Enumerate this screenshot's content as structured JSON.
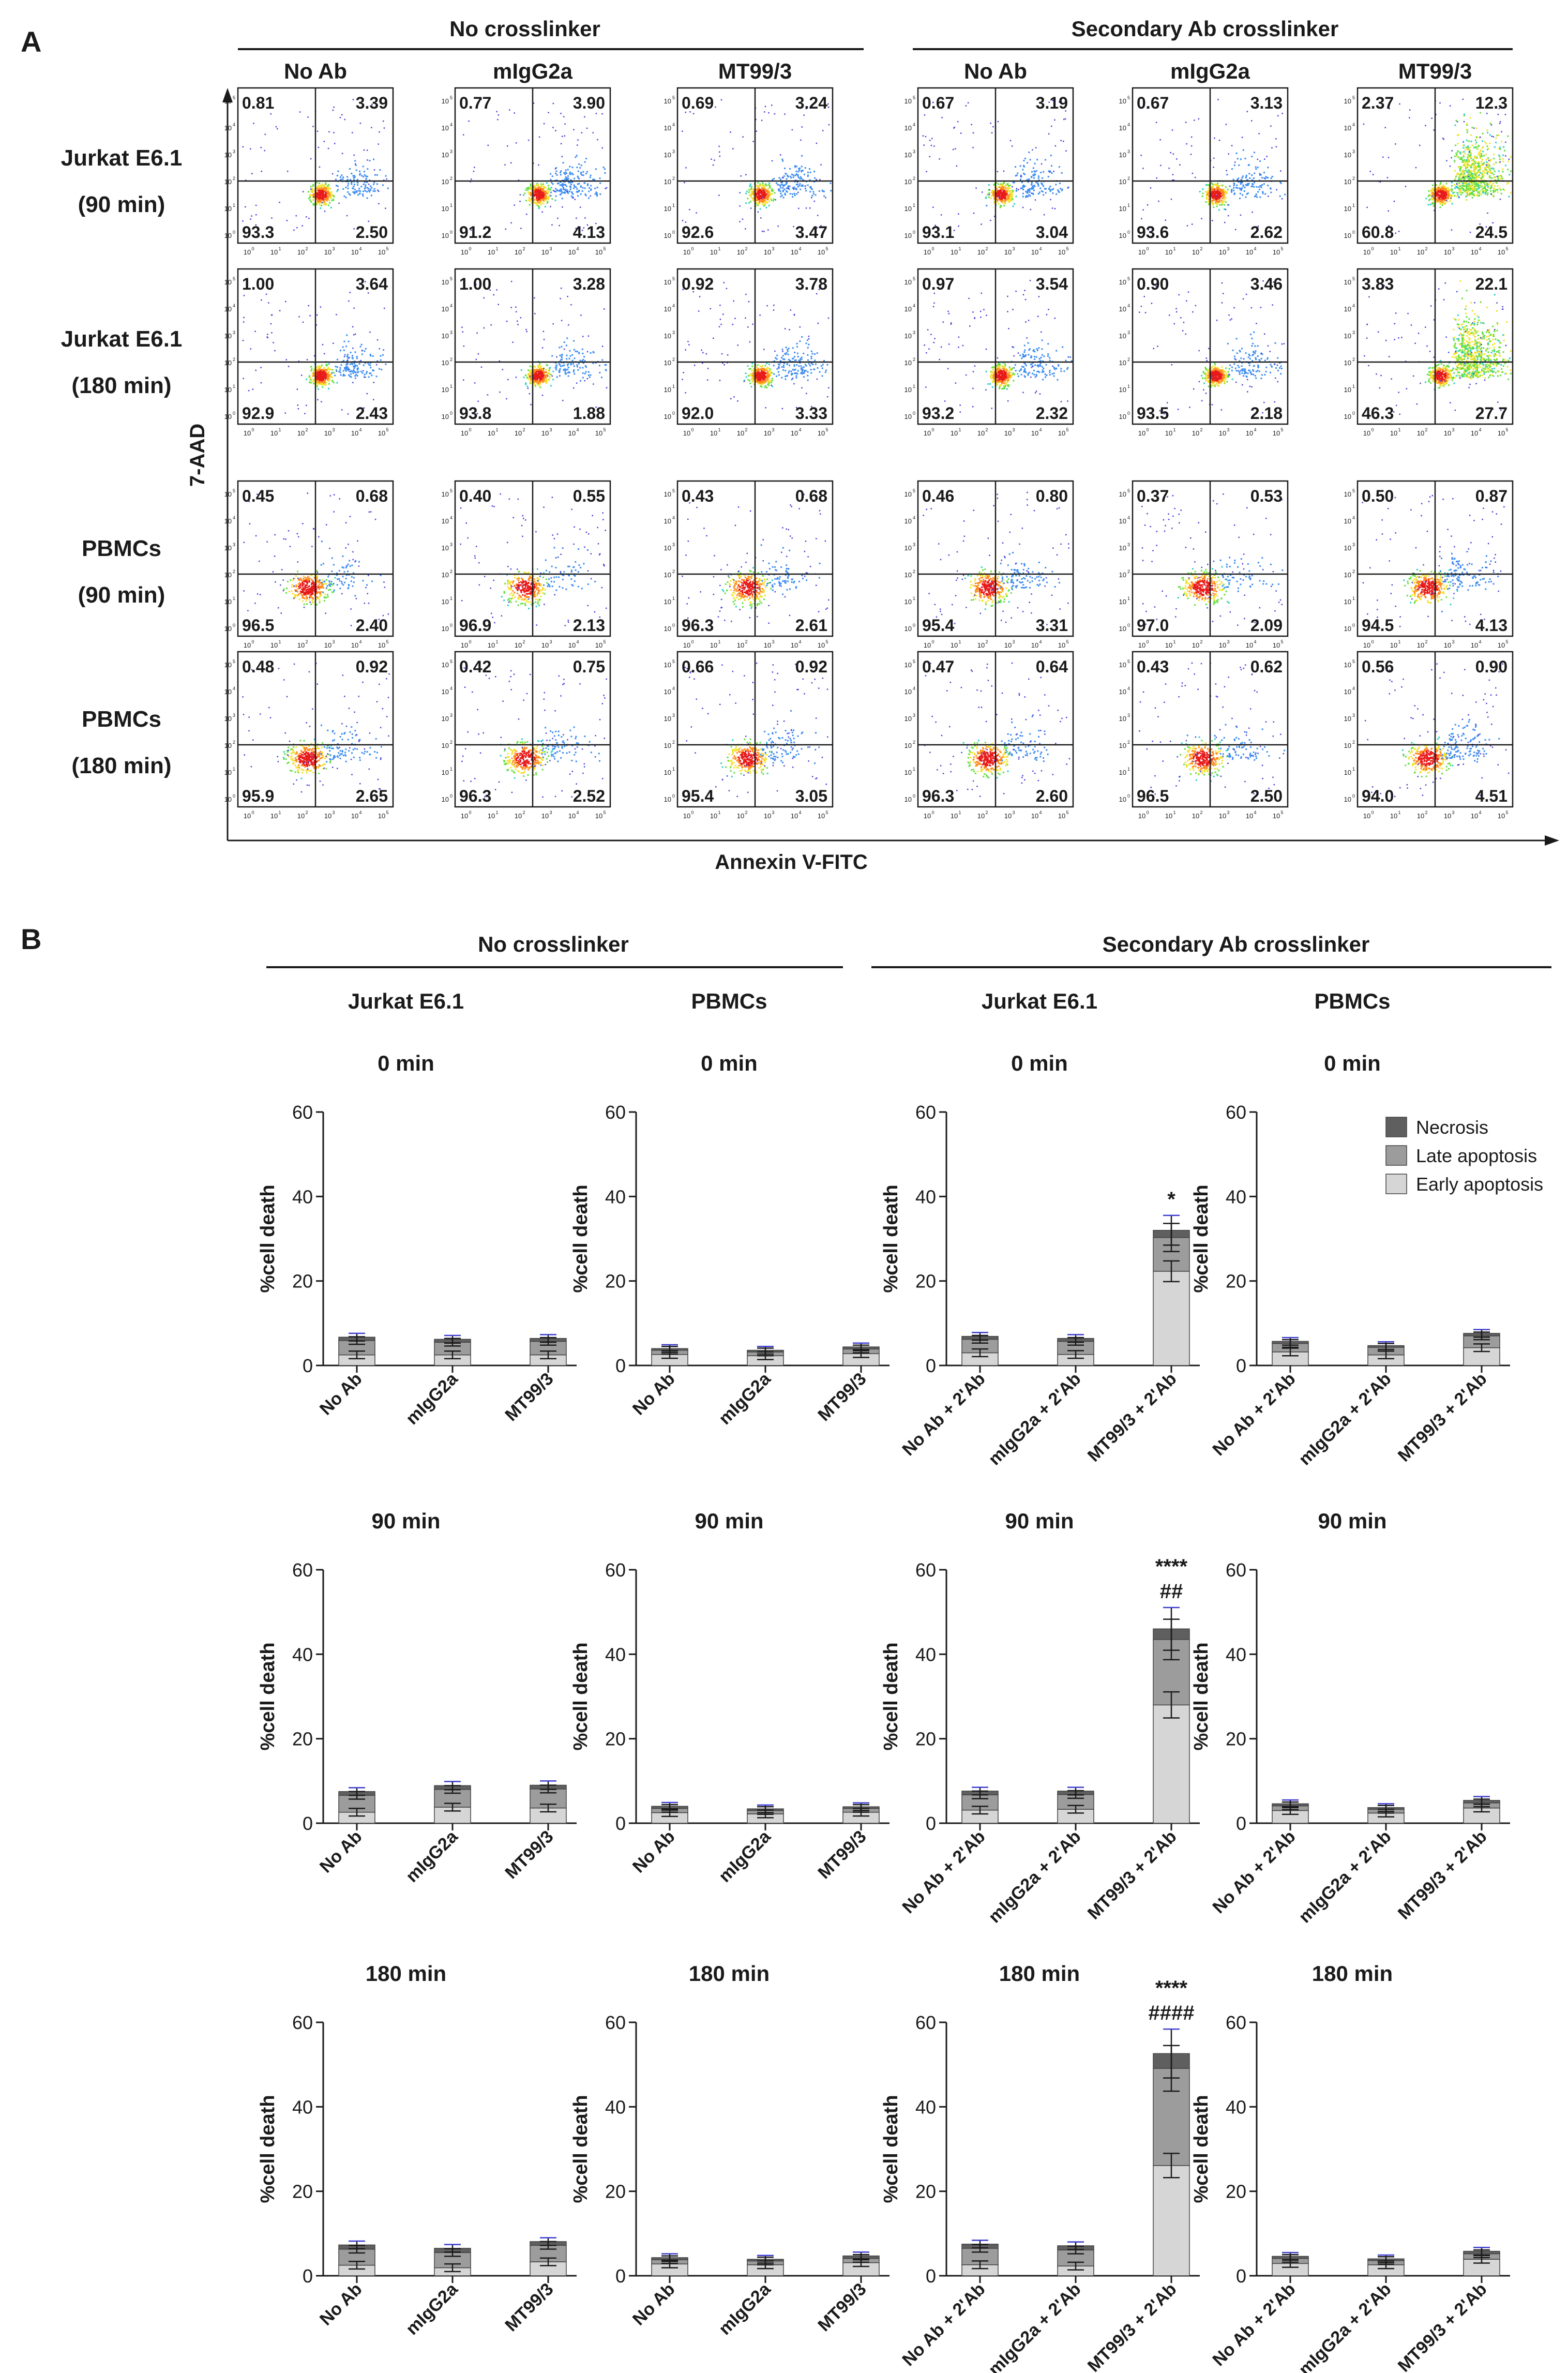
{
  "panel_a": {
    "label": "A",
    "group_headers": [
      "No crosslinker",
      "Secondary Ab crosslinker"
    ],
    "column_headers": [
      "No Ab",
      "mIgG2a",
      "MT99/3",
      "No Ab",
      "mIgG2a",
      "MT99/3"
    ],
    "row_labels": [
      [
        "Jurkat E6.1",
        "(90 min)"
      ],
      [
        "Jurkat E6.1",
        "(180 min)"
      ],
      [
        "PBMCs",
        "(90 min)"
      ],
      [
        "PBMCs",
        "(180 min)"
      ]
    ],
    "y_axis_label": "7-AAD",
    "x_axis_label": "Annexin V-FITC",
    "tick_exponents": [
      "0",
      "1",
      "2",
      "3",
      "4",
      "5"
    ],
    "quadrants": [
      [
        [
          "0.81",
          "3.39",
          "93.3",
          "2.50"
        ],
        [
          "0.77",
          "3.90",
          "91.2",
          "4.13"
        ],
        [
          "0.69",
          "3.24",
          "92.6",
          "3.47"
        ],
        [
          "0.67",
          "3.19",
          "93.1",
          "3.04"
        ],
        [
          "0.67",
          "3.13",
          "93.6",
          "2.62"
        ],
        [
          "2.37",
          "12.3",
          "60.8",
          "24.5"
        ]
      ],
      [
        [
          "1.00",
          "3.64",
          "92.9",
          "2.43"
        ],
        [
          "1.00",
          "3.28",
          "93.8",
          "1.88"
        ],
        [
          "0.92",
          "3.78",
          "92.0",
          "3.33"
        ],
        [
          "0.97",
          "3.54",
          "93.2",
          "2.32"
        ],
        [
          "0.90",
          "3.46",
          "93.5",
          "2.18"
        ],
        [
          "3.83",
          "22.1",
          "46.3",
          "27.7"
        ]
      ],
      [
        [
          "0.45",
          "0.68",
          "96.5",
          "2.40"
        ],
        [
          "0.40",
          "0.55",
          "96.9",
          "2.13"
        ],
        [
          "0.43",
          "0.68",
          "96.3",
          "2.61"
        ],
        [
          "0.46",
          "0.80",
          "95.4",
          "3.31"
        ],
        [
          "0.37",
          "0.53",
          "97.0",
          "2.09"
        ],
        [
          "0.50",
          "0.87",
          "94.5",
          "4.13"
        ]
      ],
      [
        [
          "0.48",
          "0.92",
          "95.9",
          "2.65"
        ],
        [
          "0.42",
          "0.75",
          "96.3",
          "2.52"
        ],
        [
          "0.66",
          "0.92",
          "95.4",
          "3.05"
        ],
        [
          "0.47",
          "0.64",
          "96.3",
          "2.60"
        ],
        [
          "0.43",
          "0.62",
          "96.5",
          "2.50"
        ],
        [
          "0.56",
          "0.90",
          "94.0",
          "4.51"
        ]
      ]
    ]
  },
  "panel_b": {
    "label": "B",
    "group_headers": [
      "No crosslinker",
      "Secondary Ab crosslinker"
    ],
    "column_headers": [
      "Jurkat E6.1",
      "PBMCs",
      "Jurkat E6.1",
      "PBMCs"
    ],
    "legend": [
      "Necrosis",
      "Late apoptosis",
      "Early apoptosis"
    ],
    "colors": {
      "necrosis": "#5f5f5f",
      "late": "#9c9c9c",
      "early": "#d6d6d6",
      "errbar": "#1a1a1a",
      "errcap_accent": "#3b3bd0"
    }
  },
  "chart_data": {
    "type": "bar",
    "stacked": true,
    "ylabel": "%cell death",
    "ylim": [
      0,
      60
    ],
    "yticks": [
      "0",
      "20",
      "40",
      "60"
    ],
    "series_names": [
      "Early apoptosis",
      "Late apoptosis",
      "Necrosis"
    ],
    "categories_plain": [
      "No Ab",
      "mIgG2a",
      "MT99/3"
    ],
    "categories_xl": [
      "No Ab + 2'Ab",
      "mIgG2a + 2'Ab",
      "MT99/3 + 2'Ab"
    ],
    "charts": [
      {
        "title": "0 min",
        "cats": "plain",
        "stacks": [
          [
            2.5,
            3.4,
            0.8
          ],
          [
            2.5,
            3.0,
            0.7
          ],
          [
            2.5,
            3.2,
            0.7
          ]
        ],
        "annotations": [
          "",
          "",
          ""
        ]
      },
      {
        "title": "0 min",
        "cats": "plain",
        "stacks": [
          [
            2.6,
            1.0,
            0.4
          ],
          [
            2.3,
            0.9,
            0.4
          ],
          [
            2.8,
            1.1,
            0.5
          ]
        ],
        "annotations": [
          "",
          "",
          ""
        ]
      },
      {
        "title": "0 min",
        "cats": "xl",
        "stacks": [
          [
            3.0,
            3.2,
            0.7
          ],
          [
            2.6,
            3.1,
            0.7
          ],
          [
            22.3,
            8.0,
            1.7
          ]
        ],
        "annotations": [
          "",
          "",
          "*"
        ]
      },
      {
        "title": "0 min",
        "cats": "xl",
        "stacks": [
          [
            3.2,
            2.0,
            0.5
          ],
          [
            2.5,
            1.8,
            0.4
          ],
          [
            4.2,
            2.8,
            0.6
          ]
        ],
        "annotations": [
          "",
          "",
          ""
        ]
      },
      {
        "title": "90 min",
        "cats": "plain",
        "stacks": [
          [
            2.6,
            4.0,
            0.9
          ],
          [
            3.8,
            4.2,
            0.9
          ],
          [
            3.6,
            4.5,
            0.9
          ]
        ],
        "annotations": [
          "",
          "",
          ""
        ]
      },
      {
        "title": "90 min",
        "cats": "plain",
        "stacks": [
          [
            2.5,
            1.0,
            0.5
          ],
          [
            2.2,
            0.8,
            0.4
          ],
          [
            2.6,
            0.9,
            0.4
          ]
        ],
        "annotations": [
          "",
          "",
          ""
        ]
      },
      {
        "title": "90 min",
        "cats": "xl",
        "stacks": [
          [
            3.1,
            3.6,
            0.9
          ],
          [
            3.3,
            3.5,
            0.8
          ],
          [
            28.0,
            15.5,
            2.5
          ]
        ],
        "annotations": [
          "",
          "",
          "****|##"
        ]
      },
      {
        "title": "90 min",
        "cats": "xl",
        "stacks": [
          [
            3.0,
            1.1,
            0.5
          ],
          [
            2.4,
            0.9,
            0.4
          ],
          [
            3.6,
            1.2,
            0.6
          ]
        ],
        "annotations": [
          "",
          "",
          ""
        ]
      },
      {
        "title": "180 min",
        "cats": "plain",
        "stacks": [
          [
            2.5,
            3.8,
            1.0
          ],
          [
            1.9,
            3.6,
            1.0
          ],
          [
            3.3,
            3.9,
            0.9
          ]
        ],
        "annotations": [
          "",
          "",
          ""
        ]
      },
      {
        "title": "180 min",
        "cats": "plain",
        "stacks": [
          [
            2.8,
            1.0,
            0.5
          ],
          [
            2.6,
            0.9,
            0.4
          ],
          [
            3.1,
            1.0,
            0.6
          ]
        ],
        "annotations": [
          "",
          "",
          ""
        ]
      },
      {
        "title": "180 min",
        "cats": "xl",
        "stacks": [
          [
            2.6,
            3.9,
            1.0
          ],
          [
            2.3,
            3.8,
            1.0
          ],
          [
            26.1,
            23.0,
            3.5
          ]
        ],
        "annotations": [
          "",
          "",
          "****|####"
        ]
      },
      {
        "title": "180 min",
        "cats": "xl",
        "stacks": [
          [
            2.9,
            1.2,
            0.5
          ],
          [
            2.6,
            1.0,
            0.4
          ],
          [
            3.9,
            1.3,
            0.6
          ]
        ],
        "annotations": [
          "",
          "",
          ""
        ]
      }
    ]
  }
}
